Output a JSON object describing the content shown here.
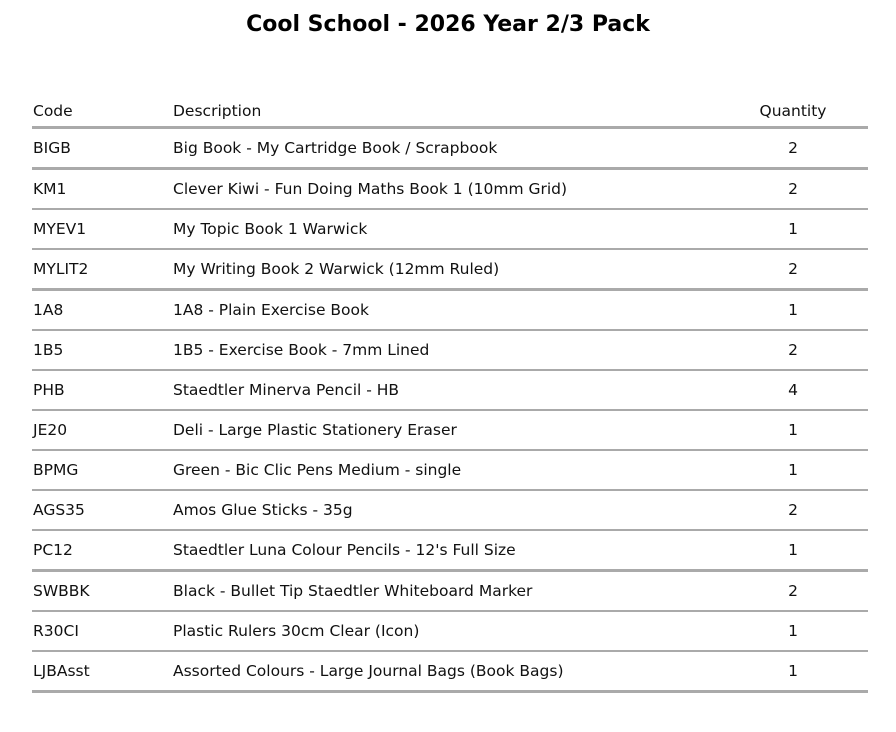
{
  "title": "Cool School - 2026 Year 2/3 Pack",
  "headers": {
    "code": "Code",
    "description": "Description",
    "quantity": "Quantity"
  },
  "rows": [
    {
      "code": "BIGB",
      "description": "Big Book - My Cartridge Book / Scrapbook",
      "quantity": "2",
      "thick": true
    },
    {
      "code": "KM1",
      "description": "Clever Kiwi - Fun Doing Maths Book 1 (10mm Grid)",
      "quantity": "2"
    },
    {
      "code": "MYEV1",
      "description": "My Topic Book 1 Warwick",
      "quantity": "1"
    },
    {
      "code": "MYLIT2",
      "description": "My Writing Book 2 Warwick (12mm Ruled)",
      "quantity": "2",
      "thick": true
    },
    {
      "code": "1A8",
      "description": "1A8 - Plain Exercise Book",
      "quantity": "1"
    },
    {
      "code": "1B5",
      "description": "1B5 - Exercise Book - 7mm Lined",
      "quantity": "2"
    },
    {
      "code": "PHB",
      "description": "Staedtler Minerva Pencil - HB",
      "quantity": "4"
    },
    {
      "code": "JE20",
      "description": "Deli - Large Plastic Stationery Eraser",
      "quantity": "1"
    },
    {
      "code": "BPMG",
      "description": "Green - Bic Clic Pens Medium - single",
      "quantity": "1"
    },
    {
      "code": "AGS35",
      "description": "Amos Glue Sticks - 35g",
      "quantity": "2"
    },
    {
      "code": "PC12",
      "description": "Staedtler Luna Colour Pencils - 12's Full Size",
      "quantity": "1",
      "thick": true
    },
    {
      "code": "SWBBK",
      "description": "Black - Bullet Tip Staedtler Whiteboard Marker",
      "quantity": "2"
    },
    {
      "code": "R30CI",
      "description": "Plastic Rulers 30cm Clear (Icon)",
      "quantity": "1"
    },
    {
      "code": "LJBAsst",
      "description": "Assorted Colours - Large Journal Bags (Book Bags)",
      "quantity": "1",
      "thick": true
    }
  ]
}
